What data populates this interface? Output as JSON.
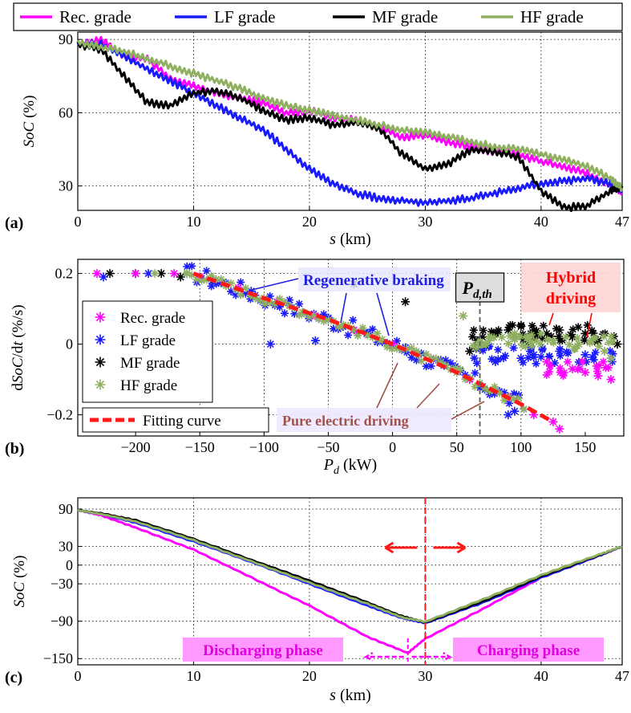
{
  "colors": {
    "rec": "#ff00ff",
    "lf": "#1a1aff",
    "mf": "#000000",
    "hf": "#8fb060",
    "fit": "#ff1a1a",
    "brown": "#a0524a",
    "blue_text": "#2020e0",
    "red_text": "#ff0000",
    "pink_box": "#ff99ff"
  },
  "chart_data": [
    {
      "panel": "(a)",
      "type": "line",
      "xlabel": "s (km)",
      "ylabel": "SoC (%)",
      "xlim": [
        0,
        47
      ],
      "ylim": [
        20,
        93
      ],
      "xticks": [
        "0",
        "10",
        "20",
        "30",
        "40",
        "47"
      ],
      "yticks": [
        "30",
        "60",
        "90"
      ],
      "grid": "dotted",
      "legend": {
        "placement": "top",
        "entries": [
          "Rec. grade",
          "LF grade",
          "MF grade",
          "HF grade"
        ]
      },
      "series": [
        {
          "name": "Rec. grade",
          "x": [
            0,
            2,
            4,
            6,
            8,
            10,
            12,
            14,
            16,
            18,
            20,
            22,
            24,
            26,
            28,
            30,
            32,
            34,
            36,
            38,
            40,
            42,
            44,
            46,
            47
          ],
          "y": [
            88,
            90,
            83,
            82,
            74,
            71,
            68,
            66,
            64,
            60,
            61,
            58,
            57,
            54,
            50,
            51,
            48,
            46,
            44,
            43,
            40,
            38,
            35,
            30,
            27
          ]
        },
        {
          "name": "LF grade",
          "x": [
            0,
            2,
            4,
            6,
            8,
            10,
            12,
            14,
            16,
            18,
            20,
            22,
            24,
            26,
            28,
            30,
            32,
            34,
            36,
            38,
            40,
            42,
            44,
            46,
            47
          ],
          "y": [
            88,
            88,
            83,
            78,
            73,
            68,
            63,
            58,
            53,
            45,
            37,
            31,
            27,
            25,
            24,
            23,
            24,
            25,
            27,
            29,
            31,
            32,
            33,
            31,
            28
          ]
        },
        {
          "name": "MF grade",
          "x": [
            0,
            2,
            4,
            6,
            8,
            10,
            12,
            14,
            16,
            18,
            20,
            22,
            24,
            26,
            28,
            30,
            32,
            34,
            36,
            38,
            40,
            42,
            44,
            46,
            47
          ],
          "y": [
            88,
            86,
            75,
            64,
            63,
            68,
            69,
            66,
            61,
            57,
            58,
            55,
            56,
            54,
            43,
            37,
            39,
            45,
            44,
            42,
            28,
            21,
            22,
            28,
            30
          ]
        },
        {
          "name": "HF grade",
          "x": [
            0,
            2,
            4,
            6,
            8,
            10,
            12,
            14,
            16,
            18,
            20,
            22,
            24,
            26,
            28,
            30,
            32,
            34,
            36,
            38,
            40,
            42,
            44,
            46,
            47
          ],
          "y": [
            89,
            87,
            85,
            82,
            79,
            76,
            73,
            70,
            66,
            63,
            61,
            59,
            57,
            55,
            53,
            52,
            50,
            48,
            46,
            45,
            43,
            41,
            38,
            33,
            29
          ]
        }
      ]
    },
    {
      "panel": "(b)",
      "type": "scatter",
      "xlabel": "Pd (kW)",
      "ylabel": "dSoC/dt (%/s)",
      "xlim": [
        -245,
        180
      ],
      "ylim": [
        -0.26,
        0.24
      ],
      "xticks": [
        "-200",
        "-150",
        "-100",
        "-50",
        "0",
        "50",
        "100",
        "150"
      ],
      "yticks": [
        "-0.2",
        "0",
        "0.2"
      ],
      "grid": "dotted",
      "threshold_x": 68,
      "threshold_label": "Pd,th",
      "legend": {
        "placement": "left",
        "entries": [
          "Rec. grade",
          "LF grade",
          "MF grade",
          "HF grade",
          "Fitting curve"
        ]
      },
      "fit_curve": {
        "x": [
          -155,
          -100,
          -50,
          0,
          50,
          100,
          125
        ],
        "y": [
          0.2,
          0.13,
          0.07,
          0.0,
          -0.08,
          -0.17,
          -0.22
        ]
      },
      "series": [
        {
          "name": "Rec. grade",
          "x": [
            -230,
            -200,
            -170,
            -150,
            -120,
            -90,
            -60,
            -30,
            0,
            30,
            60,
            90,
            110,
            125,
            130,
            120,
            140,
            150,
            160,
            170
          ],
          "y": [
            0.2,
            0.2,
            0.2,
            0.19,
            0.16,
            0.12,
            0.08,
            0.04,
            0.0,
            -0.04,
            -0.1,
            -0.15,
            -0.2,
            -0.22,
            -0.24,
            -0.05,
            -0.07,
            -0.08,
            -0.09,
            -0.1
          ]
        },
        {
          "name": "LF grade",
          "x": [
            -225,
            -190,
            -160,
            -140,
            -110,
            -80,
            -50,
            -20,
            10,
            40,
            70,
            95,
            -95,
            -60,
            90,
            100,
            110,
            130,
            150,
            170,
            80
          ],
          "y": [
            0.19,
            0.2,
            0.2,
            0.18,
            0.15,
            0.11,
            0.07,
            0.03,
            -0.01,
            -0.06,
            -0.12,
            -0.19,
            0.0,
            0.01,
            -0.2,
            -0.04,
            -0.03,
            -0.02,
            -0.03,
            -0.04,
            -0.05
          ]
        },
        {
          "name": "MF grade",
          "x": [
            -220,
            -200,
            -180,
            -165,
            -30,
            10,
            60,
            70,
            80,
            90,
            100,
            110,
            120,
            130,
            140,
            150,
            160,
            175
          ],
          "y": [
            0.2,
            0.2,
            0.2,
            0.19,
            0.17,
            0.12,
            -0.02,
            0.02,
            0.03,
            0.04,
            0.05,
            0.04,
            0.03,
            0.04,
            0.02,
            0.03,
            0.01,
            0.0
          ]
        },
        {
          "name": "HF grade",
          "x": [
            -185,
            -160,
            -130,
            -100,
            -70,
            -40,
            -10,
            20,
            50,
            80,
            55,
            75,
            85,
            95,
            105,
            115,
            125,
            135,
            145,
            155,
            165,
            170
          ],
          "y": [
            0.2,
            0.2,
            0.17,
            0.13,
            0.09,
            0.05,
            0.01,
            -0.03,
            -0.08,
            -0.13,
            0.08,
            0.01,
            0.02,
            0.03,
            0.02,
            0.0,
            0.01,
            0.02,
            0.0,
            0.01,
            -0.02,
            -0.04
          ]
        }
      ],
      "annotations": [
        "Regenerative braking",
        "Hybrid driving",
        "Pure electric driving"
      ]
    },
    {
      "panel": "(c)",
      "type": "line",
      "xlabel": "s (km)",
      "ylabel": "SoC (%)",
      "xlim": [
        0,
        47
      ],
      "ylim": [
        -160,
        108
      ],
      "xticks": [
        "0",
        "10",
        "20",
        "30",
        "40",
        "47"
      ],
      "yticks": [
        "90",
        "30",
        "0",
        "-30",
        "-90",
        "-150"
      ],
      "grid": "dotted",
      "vline_x": 30,
      "min_marker_x": 28.5,
      "series": [
        {
          "name": "Rec. grade",
          "x": [
            0,
            2,
            5,
            10,
            15,
            20,
            25,
            28.5,
            30,
            35,
            40,
            45,
            47
          ],
          "y": [
            88,
            80,
            60,
            25,
            -20,
            -65,
            -115,
            -141,
            -118,
            -70,
            -20,
            15,
            30
          ]
        },
        {
          "name": "LF grade",
          "x": [
            0,
            2,
            5,
            10,
            15,
            20,
            25,
            28,
            30,
            35,
            40,
            45,
            47
          ],
          "y": [
            88,
            82,
            68,
            38,
            5,
            -30,
            -65,
            -85,
            -93,
            -60,
            -20,
            15,
            30
          ]
        },
        {
          "name": "MF grade",
          "x": [
            0,
            2,
            5,
            10,
            15,
            20,
            25,
            28,
            30,
            35,
            40,
            45,
            47
          ],
          "y": [
            88,
            83,
            72,
            42,
            8,
            -25,
            -60,
            -82,
            -92,
            -58,
            -18,
            16,
            30
          ]
        },
        {
          "name": "HF grade",
          "x": [
            0,
            2,
            5,
            10,
            15,
            20,
            25,
            28,
            30,
            35,
            40,
            45,
            47
          ],
          "y": [
            88,
            82,
            70,
            40,
            6,
            -28,
            -62,
            -84,
            -91,
            -55,
            -16,
            17,
            30
          ]
        }
      ],
      "annotations": [
        "Discharging phase",
        "Charging phase"
      ]
    }
  ]
}
